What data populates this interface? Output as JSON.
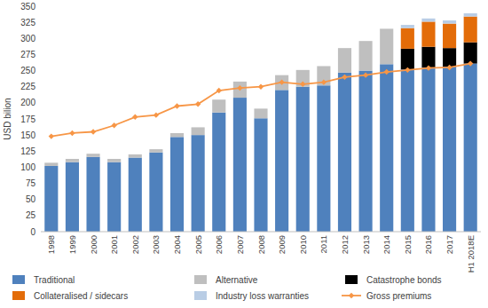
{
  "chart_data": {
    "type": "bar",
    "stacked": true,
    "grid": false,
    "legend": "bottom",
    "y_label": "USD bilion",
    "categories": [
      "1998",
      "1999",
      "2000",
      "2001",
      "2002",
      "2003",
      "2004",
      "2005",
      "2006",
      "2007",
      "2008",
      "2009",
      "2010",
      "2011",
      "2012",
      "2013",
      "2014",
      "2015",
      "2016",
      "2017",
      "H1 2018E"
    ],
    "ylim": [
      0,
      350
    ],
    "yticks": [
      0,
      25,
      50,
      75,
      100,
      125,
      150,
      175,
      200,
      225,
      250,
      275,
      300,
      325,
      350
    ],
    "series": [
      {
        "name": "Traditional",
        "type": "bar",
        "color": "#4f81bd",
        "values": [
          102,
          108,
          116,
          108,
          115,
          123,
          147,
          150,
          185,
          208,
          176,
          220,
          225,
          227,
          247,
          250,
          260,
          252,
          255,
          256,
          261
        ]
      },
      {
        "name": "Alternative",
        "type": "bar",
        "color": "#bfbfbf",
        "values": [
          5,
          5,
          5,
          5,
          5,
          5,
          6,
          12,
          20,
          25,
          15,
          23,
          26,
          30,
          38,
          46,
          55,
          null,
          null,
          null,
          null
        ]
      },
      {
        "name": "Catastrophe bonds",
        "type": "bar",
        "color": "#000000",
        "values": [
          null,
          null,
          null,
          null,
          null,
          null,
          null,
          null,
          null,
          null,
          null,
          null,
          null,
          null,
          null,
          null,
          null,
          32,
          32,
          29,
          33
        ]
      },
      {
        "name": "Collateralised / sidecars",
        "type": "bar",
        "color": "#e36c09",
        "values": [
          null,
          null,
          null,
          null,
          null,
          null,
          null,
          null,
          null,
          null,
          null,
          null,
          null,
          null,
          null,
          null,
          null,
          32,
          39,
          38,
          40
        ]
      },
      {
        "name": "Industry loss warranties",
        "type": "bar",
        "color": "#b9cde5",
        "values": [
          null,
          null,
          null,
          null,
          null,
          null,
          null,
          null,
          null,
          null,
          null,
          null,
          null,
          null,
          null,
          null,
          null,
          5,
          5,
          5,
          5
        ]
      },
      {
        "name": "Gross premiums",
        "type": "line",
        "color": "#f79646",
        "marker": "diamond",
        "line_style": "solid",
        "values": [
          148,
          153,
          155,
          165,
          178,
          181,
          195,
          198,
          219,
          223,
          225,
          232,
          229,
          232,
          240,
          243,
          248,
          251,
          254,
          255,
          261
        ]
      }
    ]
  }
}
